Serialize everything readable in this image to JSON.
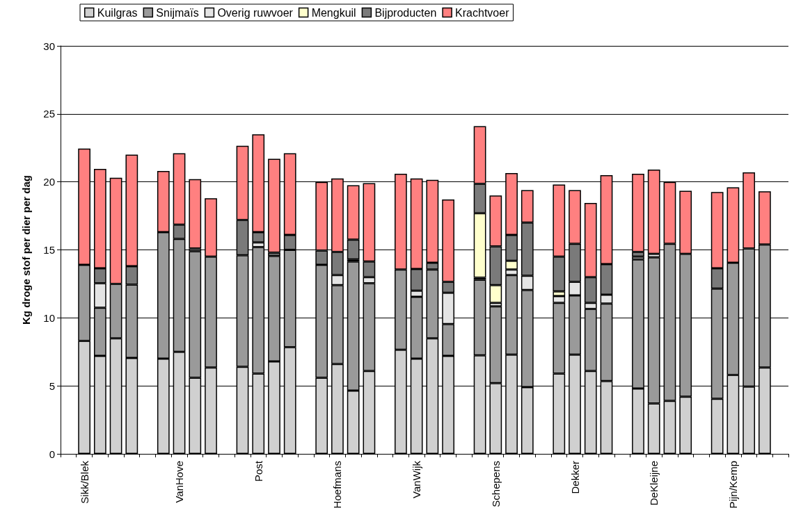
{
  "chart_data": {
    "type": "bar",
    "stacked": true,
    "ylabel": "Kg droge stof per dier per dag",
    "ylim": [
      0,
      30
    ],
    "yticks": [
      0,
      5,
      10,
      15,
      20,
      25,
      30
    ],
    "grid": "y",
    "legend": "top left",
    "categories": [
      null,
      "Sikk/Blek",
      null,
      null,
      null,
      null,
      null,
      "VanHove",
      null,
      null,
      null,
      null,
      "Post",
      null,
      null,
      null,
      null,
      "Hoefmans",
      null,
      null,
      null,
      null,
      "VanWijk",
      null,
      null,
      null,
      null,
      "Schepens",
      null,
      null,
      null,
      null,
      "Dekker",
      null,
      null,
      null,
      null,
      "DeKleijne",
      null,
      null,
      null,
      null,
      "Pijn/Kemp",
      null,
      null,
      null
    ],
    "series": [
      {
        "name": "Kuilgras",
        "color": "#d0d0d0",
        "values": [
          null,
          8.3,
          7.2,
          8.5,
          7.05,
          null,
          7.0,
          7.5,
          5.6,
          6.35,
          null,
          6.4,
          5.9,
          6.8,
          7.85,
          null,
          5.6,
          6.6,
          4.65,
          6.1,
          null,
          7.65,
          7.0,
          8.5,
          7.2,
          null,
          7.25,
          5.2,
          7.3,
          4.9,
          null,
          5.9,
          7.3,
          6.1,
          5.35,
          null,
          4.8,
          3.7,
          3.9,
          4.2,
          null,
          4.05,
          5.8,
          4.95,
          6.35,
          null
        ]
      },
      {
        "name": "Snijmaïs",
        "color": "#9a9a9a",
        "values": [
          null,
          5.6,
          3.55,
          4.0,
          5.4,
          null,
          9.3,
          8.3,
          9.3,
          8.15,
          null,
          8.2,
          9.3,
          7.75,
          7.15,
          null,
          8.3,
          5.8,
          9.5,
          6.45,
          null,
          5.9,
          4.55,
          5.05,
          2.35,
          null,
          5.55,
          5.65,
          5.85,
          7.15,
          null,
          5.2,
          4.35,
          4.55,
          5.7,
          null,
          9.5,
          10.75,
          11.55,
          10.5,
          null,
          8.1,
          8.25,
          10.15,
          9.05,
          null
        ]
      },
      {
        "name": "Overig ruwvoer",
        "color": "#e4e4e4",
        "values": [
          null,
          null,
          1.8,
          null,
          null,
          null,
          null,
          null,
          null,
          null,
          null,
          null,
          0.35,
          null,
          null,
          null,
          null,
          0.75,
          0.15,
          0.45,
          null,
          null,
          0.45,
          null,
          2.3,
          null,
          0.15,
          0.25,
          0.4,
          1.05,
          null,
          0.5,
          1.0,
          0.45,
          0.65,
          null,
          0.2,
          0.25,
          null,
          null,
          null,
          null,
          null,
          null,
          null,
          null
        ]
      },
      {
        "name": "Mengkuil",
        "color": "#ffffcc",
        "values": [
          null,
          null,
          null,
          null,
          null,
          null,
          null,
          null,
          null,
          null,
          null,
          null,
          null,
          null,
          null,
          null,
          null,
          null,
          null,
          null,
          null,
          null,
          null,
          null,
          null,
          null,
          4.75,
          1.3,
          0.65,
          null,
          null,
          0.35,
          null,
          null,
          null,
          null,
          null,
          null,
          null,
          null,
          null,
          null,
          null,
          null,
          null,
          null
        ]
      },
      {
        "name": "Bijproducten",
        "color": "#7a7a7a",
        "values": [
          null,
          null,
          1.1,
          null,
          1.35,
          null,
          null,
          1.05,
          0.2,
          null,
          null,
          2.6,
          0.75,
          0.25,
          1.1,
          null,
          1.05,
          1.7,
          1.45,
          1.15,
          null,
          null,
          1.6,
          0.5,
          0.8,
          null,
          2.15,
          2.85,
          1.9,
          3.9,
          null,
          2.55,
          2.8,
          1.9,
          2.25,
          null,
          0.35,
          null,
          null,
          null,
          null,
          1.5,
          null,
          null,
          null,
          null
        ]
      },
      {
        "name": "Krachtvoer",
        "color": "#ff8080",
        "values": [
          null,
          8.55,
          7.3,
          7.8,
          8.2,
          null,
          4.5,
          5.25,
          5.1,
          4.3,
          null,
          5.45,
          7.2,
          6.9,
          6.0,
          null,
          5.05,
          5.4,
          4.0,
          5.75,
          null,
          7.05,
          6.65,
          6.1,
          6.05,
          null,
          4.25,
          3.75,
          4.55,
          2.4,
          null,
          5.3,
          3.95,
          5.45,
          6.55,
          null,
          5.75,
          6.2,
          4.55,
          4.65,
          null,
          5.6,
          5.55,
          5.6,
          3.9,
          null
        ]
      }
    ]
  }
}
